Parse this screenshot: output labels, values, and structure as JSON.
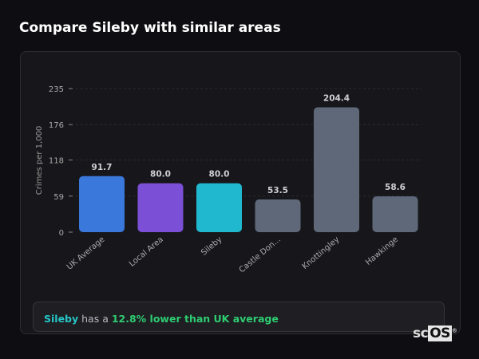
{
  "header": {
    "title": "Compare Sileby with similar areas"
  },
  "chart_data": {
    "type": "bar",
    "ylabel": "Crimes per 1,000",
    "xlabel": "",
    "ylim": [
      0,
      235
    ],
    "yticks": [
      0,
      59,
      118,
      176,
      235
    ],
    "grid": true,
    "categories": [
      "UK Average",
      "Local Area",
      "Sileby",
      "Castle Don...",
      "Knottingley",
      "Hawkinge"
    ],
    "values": [
      91.7,
      80.0,
      80.0,
      53.5,
      204.4,
      58.6
    ],
    "value_labels": [
      "91.7",
      "80.0",
      "80.0",
      "53.5",
      "204.4",
      "58.6"
    ],
    "colors": [
      "#3a78dc",
      "#7b4fd6",
      "#1fb8cf",
      "#5e6878",
      "#5e6878",
      "#5e6878"
    ]
  },
  "summary": {
    "area": "Sileby",
    "middle": " has a ",
    "comparison": "12.8% lower than UK average"
  },
  "logo": {
    "text_sc": "sc",
    "text_os": "OS",
    "mark": "®"
  }
}
